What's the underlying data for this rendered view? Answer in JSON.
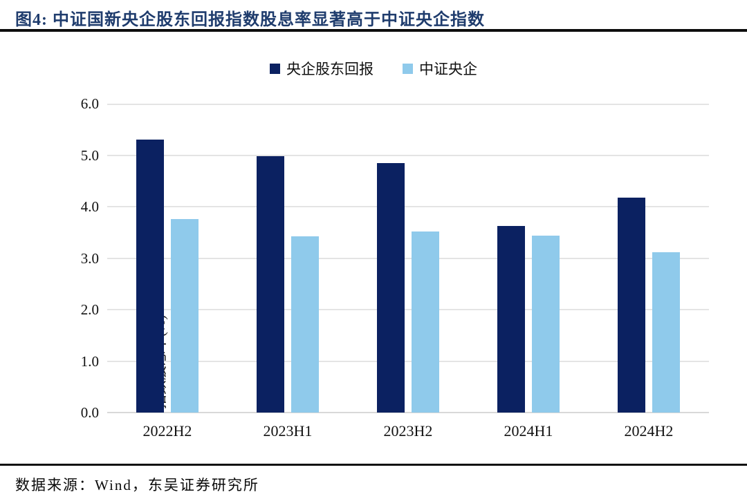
{
  "header": {
    "title": "图4:  中证国新央企股东回报指数股息率显著高于中证央企指数"
  },
  "footer": {
    "source": "数据来源：Wind，东吴证券研究所"
  },
  "colors": {
    "series_dark": "#0b2161",
    "series_light": "#8fcaeb",
    "title_navy": "#1f3c6d",
    "gridline": "#e4e4e4",
    "axis_line": "#d8d8d8",
    "rule_black": "#0d0d0d"
  },
  "chart_data": {
    "type": "bar",
    "title": "图4: 中证国新央企股东回报指数股息率显著高于中证央企指数",
    "categories": [
      "2022H2",
      "2023H1",
      "2023H2",
      "2024H1",
      "2024H2"
    ],
    "series": [
      {
        "name": "央企股东回报",
        "color": "#0b2161",
        "values": [
          5.3,
          4.98,
          4.85,
          3.63,
          4.17
        ]
      },
      {
        "name": "中证央企",
        "color": "#8fcaeb",
        "values": [
          3.76,
          3.42,
          3.52,
          3.43,
          3.12
        ]
      }
    ],
    "xlabel": "",
    "ylabel": "指数股息率(%)",
    "ylim": [
      0,
      6
    ],
    "ytick_step": 1.0,
    "ytick_labels": [
      "0.0",
      "1.0",
      "2.0",
      "3.0",
      "4.0",
      "5.0",
      "6.0"
    ],
    "grid": true,
    "legend_position": "top"
  }
}
